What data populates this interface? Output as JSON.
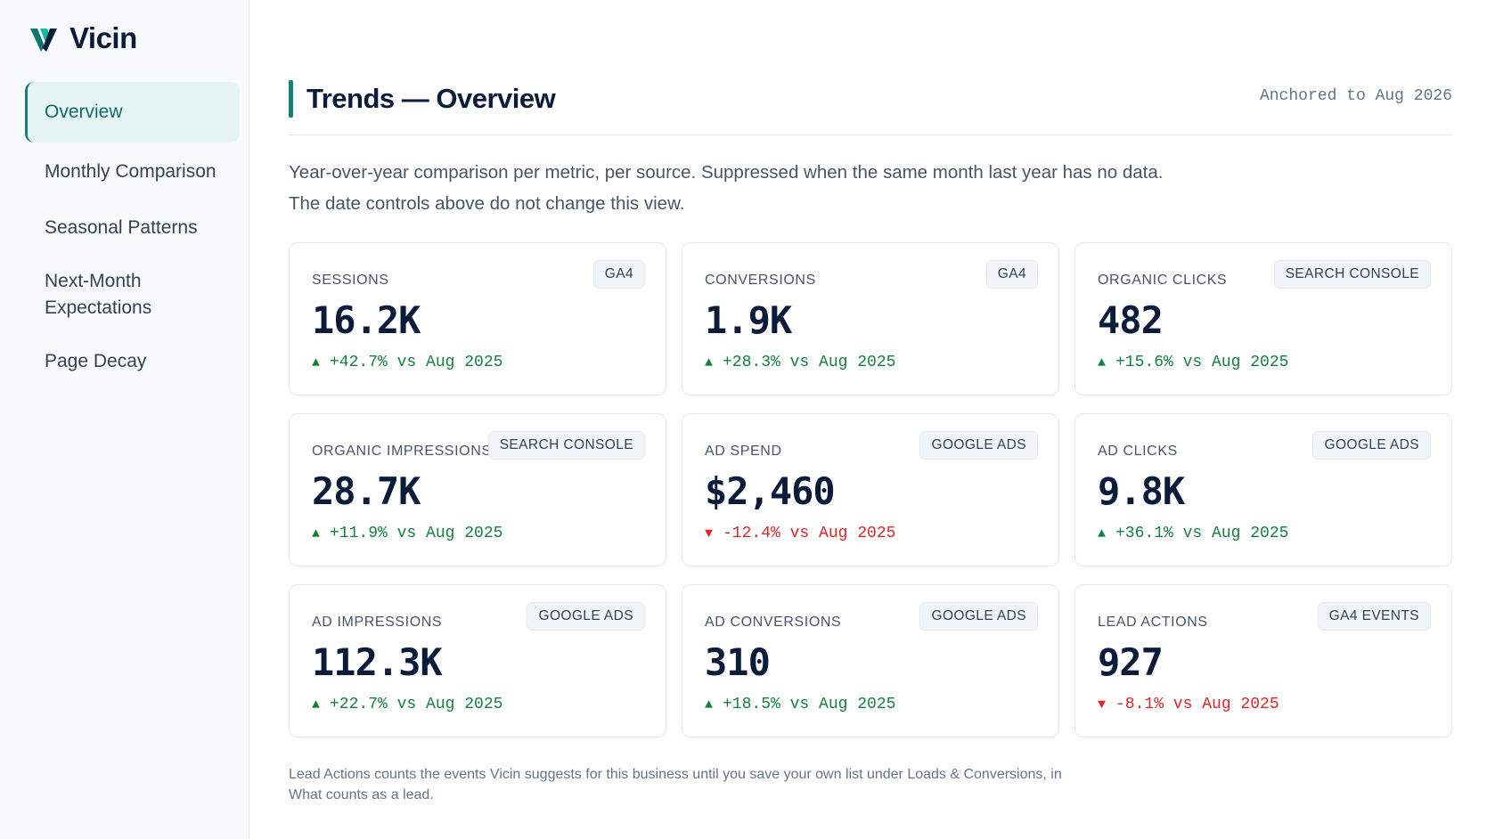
{
  "app": {
    "name": "Vicin"
  },
  "sidebar": {
    "items": [
      {
        "label": "Overview",
        "active": true
      },
      {
        "label": "Monthly Comparison"
      },
      {
        "label": "Seasonal Patterns"
      },
      {
        "label": "Next-Month Expectations"
      },
      {
        "label": "Page Decay"
      }
    ]
  },
  "header": {
    "title": "Trends — Overview",
    "anchor": "Anchored to Aug 2026"
  },
  "description": {
    "line1": "Year-over-year comparison per metric, per source. Suppressed when the same month last year has no data.",
    "line2": "The date controls above do not change this view."
  },
  "cards": [
    {
      "label": "SESSIONS",
      "source": "GA4",
      "value": "16.2K",
      "delta": "+42.7% vs Aug 2025",
      "direction": "up"
    },
    {
      "label": "CONVERSIONS",
      "source": "GA4",
      "value": "1.9K",
      "delta": "+28.3% vs Aug 2025",
      "direction": "up"
    },
    {
      "label": "ORGANIC CLICKS",
      "source": "SEARCH CONSOLE",
      "value": "482",
      "delta": "+15.6% vs Aug 2025",
      "direction": "up"
    },
    {
      "label": "ORGANIC IMPRESSIONS",
      "source": "SEARCH CONSOLE",
      "value": "28.7K",
      "delta": "+11.9% vs Aug 2025",
      "direction": "up"
    },
    {
      "label": "AD SPEND",
      "source": "GOOGLE ADS",
      "value": "$2,460",
      "delta": "-12.4% vs Aug 2025",
      "direction": "down"
    },
    {
      "label": "AD CLICKS",
      "source": "GOOGLE ADS",
      "value": "9.8K",
      "delta": "+36.1% vs Aug 2025",
      "direction": "up"
    },
    {
      "label": "AD IMPRESSIONS",
      "source": "GOOGLE ADS",
      "value": "112.3K",
      "delta": "+22.7% vs Aug 2025",
      "direction": "up"
    },
    {
      "label": "AD CONVERSIONS",
      "source": "GOOGLE ADS",
      "value": "310",
      "delta": "+18.5% vs Aug 2025",
      "direction": "up"
    },
    {
      "label": "LEAD ACTIONS",
      "source": "GA4 EVENTS",
      "value": "927",
      "delta": "-8.1% vs Aug 2025",
      "direction": "down"
    }
  ],
  "footnote": {
    "line1": "Lead Actions counts the events Vicin suggests for this business until you save your own list under Loads & Conversions, in",
    "line2": "What counts as a lead."
  },
  "colors": {
    "accent": "#13807a",
    "up": "#15803d",
    "down": "#dc2626"
  },
  "icons": {
    "up": "triangle-up-icon",
    "down": "triangle-down-icon"
  }
}
